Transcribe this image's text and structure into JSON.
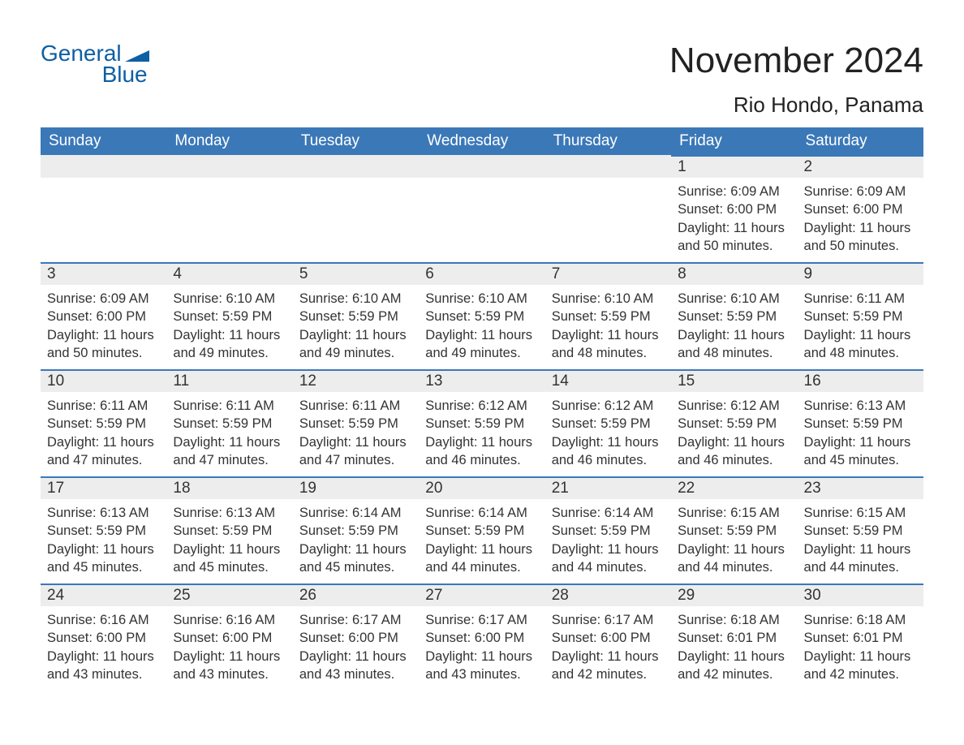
{
  "brand": {
    "line1": "General",
    "line2": "Blue"
  },
  "title": "November 2024",
  "location": "Rio Hondo, Panama",
  "colors": {
    "header_bg": "#3b78b8",
    "header_text": "#ffffff",
    "dayhead_bg": "#ededed",
    "border_top": "#3b78b8",
    "text": "#333333",
    "brand": "#0e5fa4",
    "background": "#ffffff"
  },
  "fonts": {
    "title_pt": 44,
    "location_pt": 26,
    "th_pt": 19,
    "body_pt": 16.5
  },
  "weekdays": [
    "Sunday",
    "Monday",
    "Tuesday",
    "Wednesday",
    "Thursday",
    "Friday",
    "Saturday"
  ],
  "weeks": [
    [
      null,
      null,
      null,
      null,
      null,
      {
        "n": "1",
        "sunrise": "Sunrise: 6:09 AM",
        "sunset": "Sunset: 6:00 PM",
        "d1": "Daylight: 11 hours",
        "d2": "and 50 minutes."
      },
      {
        "n": "2",
        "sunrise": "Sunrise: 6:09 AM",
        "sunset": "Sunset: 6:00 PM",
        "d1": "Daylight: 11 hours",
        "d2": "and 50 minutes."
      }
    ],
    [
      {
        "n": "3",
        "sunrise": "Sunrise: 6:09 AM",
        "sunset": "Sunset: 6:00 PM",
        "d1": "Daylight: 11 hours",
        "d2": "and 50 minutes."
      },
      {
        "n": "4",
        "sunrise": "Sunrise: 6:10 AM",
        "sunset": "Sunset: 5:59 PM",
        "d1": "Daylight: 11 hours",
        "d2": "and 49 minutes."
      },
      {
        "n": "5",
        "sunrise": "Sunrise: 6:10 AM",
        "sunset": "Sunset: 5:59 PM",
        "d1": "Daylight: 11 hours",
        "d2": "and 49 minutes."
      },
      {
        "n": "6",
        "sunrise": "Sunrise: 6:10 AM",
        "sunset": "Sunset: 5:59 PM",
        "d1": "Daylight: 11 hours",
        "d2": "and 49 minutes."
      },
      {
        "n": "7",
        "sunrise": "Sunrise: 6:10 AM",
        "sunset": "Sunset: 5:59 PM",
        "d1": "Daylight: 11 hours",
        "d2": "and 48 minutes."
      },
      {
        "n": "8",
        "sunrise": "Sunrise: 6:10 AM",
        "sunset": "Sunset: 5:59 PM",
        "d1": "Daylight: 11 hours",
        "d2": "and 48 minutes."
      },
      {
        "n": "9",
        "sunrise": "Sunrise: 6:11 AM",
        "sunset": "Sunset: 5:59 PM",
        "d1": "Daylight: 11 hours",
        "d2": "and 48 minutes."
      }
    ],
    [
      {
        "n": "10",
        "sunrise": "Sunrise: 6:11 AM",
        "sunset": "Sunset: 5:59 PM",
        "d1": "Daylight: 11 hours",
        "d2": "and 47 minutes."
      },
      {
        "n": "11",
        "sunrise": "Sunrise: 6:11 AM",
        "sunset": "Sunset: 5:59 PM",
        "d1": "Daylight: 11 hours",
        "d2": "and 47 minutes."
      },
      {
        "n": "12",
        "sunrise": "Sunrise: 6:11 AM",
        "sunset": "Sunset: 5:59 PM",
        "d1": "Daylight: 11 hours",
        "d2": "and 47 minutes."
      },
      {
        "n": "13",
        "sunrise": "Sunrise: 6:12 AM",
        "sunset": "Sunset: 5:59 PM",
        "d1": "Daylight: 11 hours",
        "d2": "and 46 minutes."
      },
      {
        "n": "14",
        "sunrise": "Sunrise: 6:12 AM",
        "sunset": "Sunset: 5:59 PM",
        "d1": "Daylight: 11 hours",
        "d2": "and 46 minutes."
      },
      {
        "n": "15",
        "sunrise": "Sunrise: 6:12 AM",
        "sunset": "Sunset: 5:59 PM",
        "d1": "Daylight: 11 hours",
        "d2": "and 46 minutes."
      },
      {
        "n": "16",
        "sunrise": "Sunrise: 6:13 AM",
        "sunset": "Sunset: 5:59 PM",
        "d1": "Daylight: 11 hours",
        "d2": "and 45 minutes."
      }
    ],
    [
      {
        "n": "17",
        "sunrise": "Sunrise: 6:13 AM",
        "sunset": "Sunset: 5:59 PM",
        "d1": "Daylight: 11 hours",
        "d2": "and 45 minutes."
      },
      {
        "n": "18",
        "sunrise": "Sunrise: 6:13 AM",
        "sunset": "Sunset: 5:59 PM",
        "d1": "Daylight: 11 hours",
        "d2": "and 45 minutes."
      },
      {
        "n": "19",
        "sunrise": "Sunrise: 6:14 AM",
        "sunset": "Sunset: 5:59 PM",
        "d1": "Daylight: 11 hours",
        "d2": "and 45 minutes."
      },
      {
        "n": "20",
        "sunrise": "Sunrise: 6:14 AM",
        "sunset": "Sunset: 5:59 PM",
        "d1": "Daylight: 11 hours",
        "d2": "and 44 minutes."
      },
      {
        "n": "21",
        "sunrise": "Sunrise: 6:14 AM",
        "sunset": "Sunset: 5:59 PM",
        "d1": "Daylight: 11 hours",
        "d2": "and 44 minutes."
      },
      {
        "n": "22",
        "sunrise": "Sunrise: 6:15 AM",
        "sunset": "Sunset: 5:59 PM",
        "d1": "Daylight: 11 hours",
        "d2": "and 44 minutes."
      },
      {
        "n": "23",
        "sunrise": "Sunrise: 6:15 AM",
        "sunset": "Sunset: 5:59 PM",
        "d1": "Daylight: 11 hours",
        "d2": "and 44 minutes."
      }
    ],
    [
      {
        "n": "24",
        "sunrise": "Sunrise: 6:16 AM",
        "sunset": "Sunset: 6:00 PM",
        "d1": "Daylight: 11 hours",
        "d2": "and 43 minutes."
      },
      {
        "n": "25",
        "sunrise": "Sunrise: 6:16 AM",
        "sunset": "Sunset: 6:00 PM",
        "d1": "Daylight: 11 hours",
        "d2": "and 43 minutes."
      },
      {
        "n": "26",
        "sunrise": "Sunrise: 6:17 AM",
        "sunset": "Sunset: 6:00 PM",
        "d1": "Daylight: 11 hours",
        "d2": "and 43 minutes."
      },
      {
        "n": "27",
        "sunrise": "Sunrise: 6:17 AM",
        "sunset": "Sunset: 6:00 PM",
        "d1": "Daylight: 11 hours",
        "d2": "and 43 minutes."
      },
      {
        "n": "28",
        "sunrise": "Sunrise: 6:17 AM",
        "sunset": "Sunset: 6:00 PM",
        "d1": "Daylight: 11 hours",
        "d2": "and 42 minutes."
      },
      {
        "n": "29",
        "sunrise": "Sunrise: 6:18 AM",
        "sunset": "Sunset: 6:01 PM",
        "d1": "Daylight: 11 hours",
        "d2": "and 42 minutes."
      },
      {
        "n": "30",
        "sunrise": "Sunrise: 6:18 AM",
        "sunset": "Sunset: 6:01 PM",
        "d1": "Daylight: 11 hours",
        "d2": "and 42 minutes."
      }
    ]
  ]
}
